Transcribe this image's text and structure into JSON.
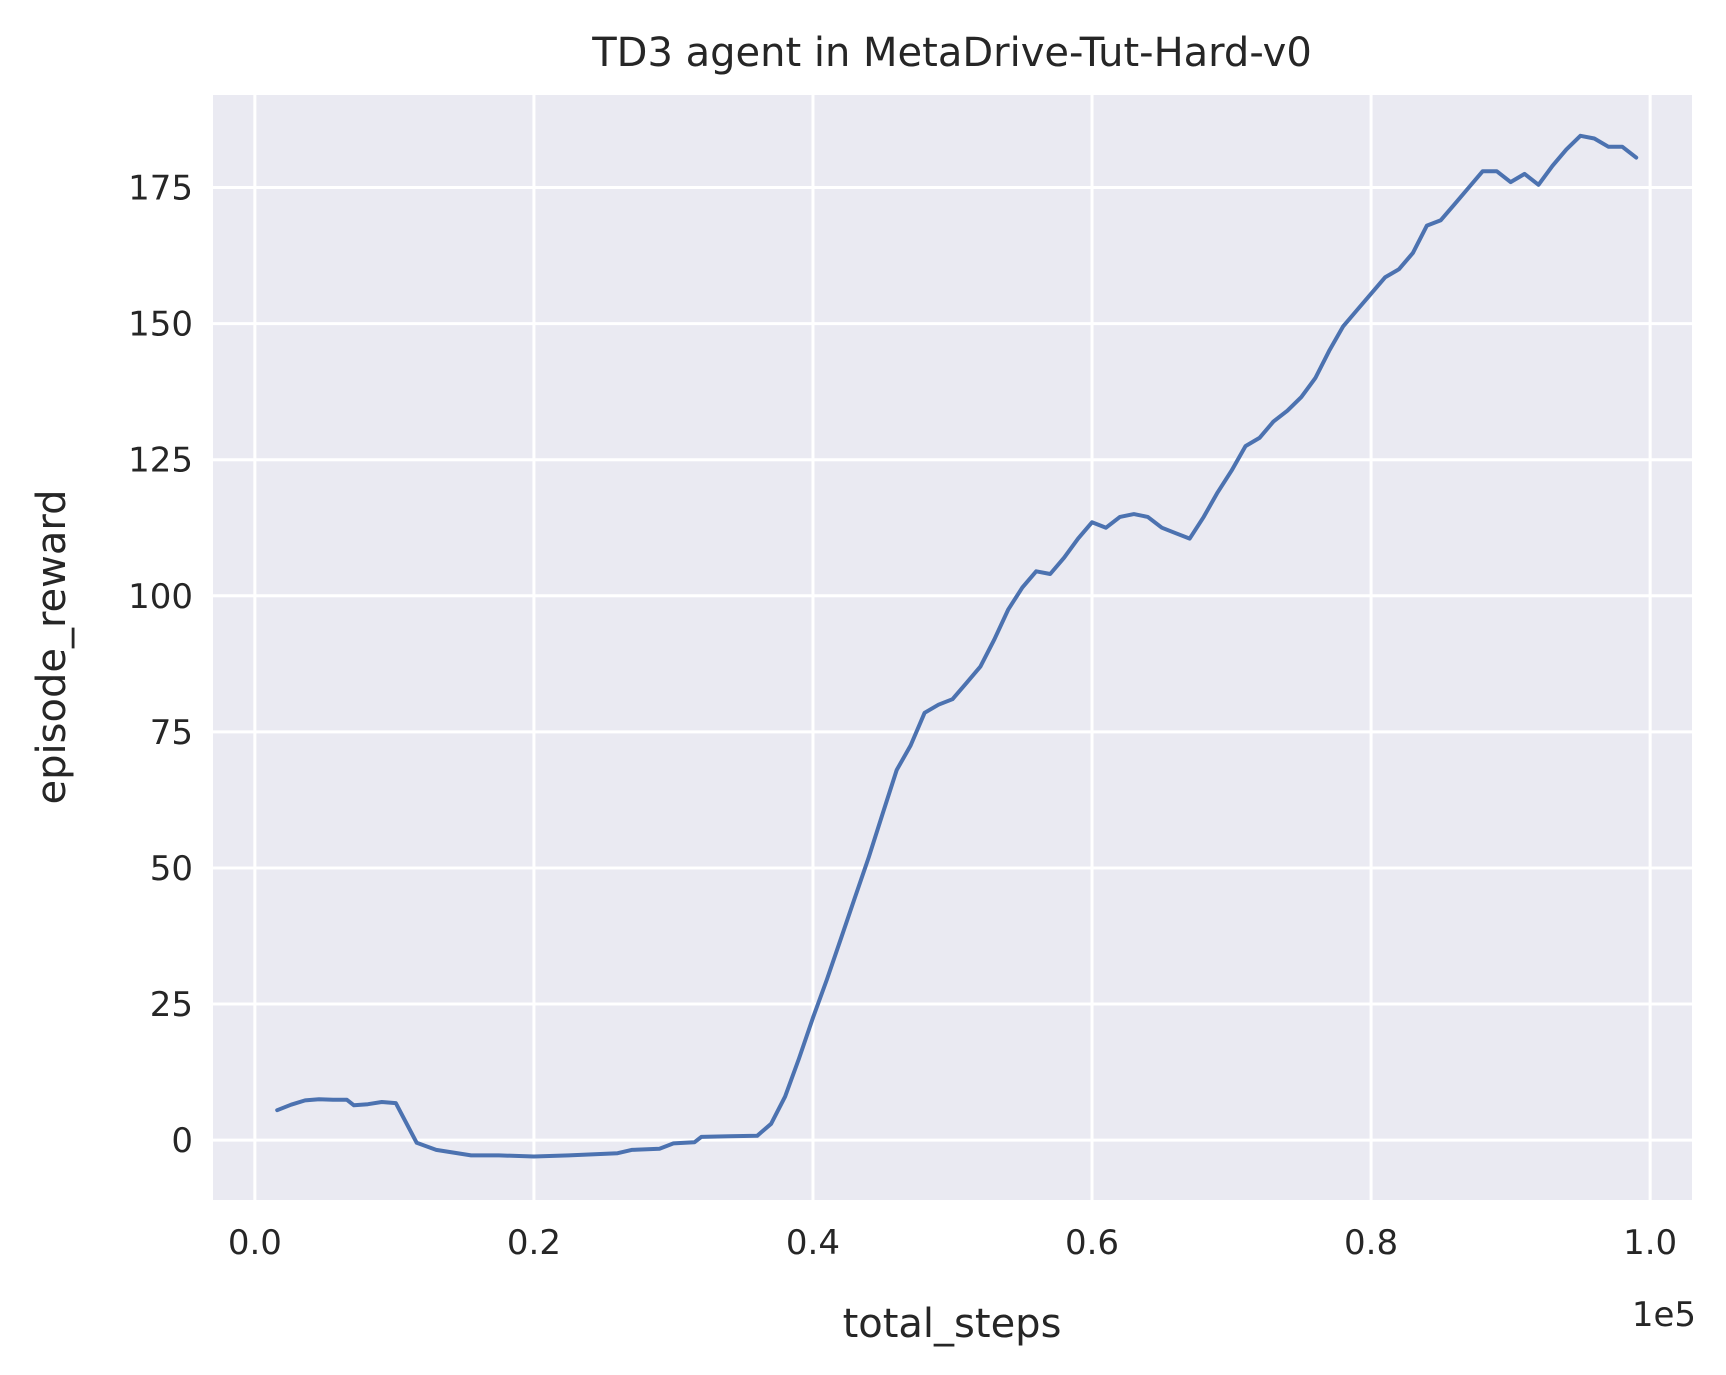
{
  "chart_data": {
    "type": "line",
    "title": "TD3 agent in MetaDrive-Tut-Hard-v0",
    "xlabel": "total_steps",
    "ylabel": "episode_reward",
    "x_offset_label": "1e5",
    "xlim": [
      -0.03,
      1.03
    ],
    "ylim": [
      -11,
      192
    ],
    "xticks": [
      0.0,
      0.2,
      0.4,
      0.6,
      0.8,
      1.0
    ],
    "xtick_labels": [
      "0.0",
      "0.2",
      "0.4",
      "0.6",
      "0.8",
      "1.0"
    ],
    "yticks": [
      0,
      25,
      50,
      75,
      100,
      125,
      150,
      175
    ],
    "ytick_labels": [
      "0",
      "25",
      "50",
      "75",
      "100",
      "125",
      "150",
      "175"
    ],
    "grid": true,
    "background": "#EAEAF2",
    "line_color": "#4C72B0",
    "series": [
      {
        "x": [
          0.016,
          0.026,
          0.036,
          0.046,
          0.056,
          0.066,
          0.071,
          0.081,
          0.091,
          0.101,
          0.116,
          0.13,
          0.155,
          0.175,
          0.2,
          0.225,
          0.26,
          0.27,
          0.29,
          0.3,
          0.315,
          0.32,
          0.34,
          0.36,
          0.37,
          0.38,
          0.39,
          0.4,
          0.41,
          0.42,
          0.43,
          0.44,
          0.45,
          0.46,
          0.47,
          0.48,
          0.49,
          0.5,
          0.51,
          0.52,
          0.53,
          0.54,
          0.55,
          0.56,
          0.57,
          0.58,
          0.59,
          0.6,
          0.61,
          0.62,
          0.63,
          0.64,
          0.65,
          0.66,
          0.67,
          0.68,
          0.69,
          0.7,
          0.71,
          0.72,
          0.73,
          0.74,
          0.75,
          0.76,
          0.77,
          0.78,
          0.79,
          0.8,
          0.81,
          0.82,
          0.83,
          0.84,
          0.85,
          0.86,
          0.87,
          0.88,
          0.89,
          0.9,
          0.91,
          0.92,
          0.93,
          0.94,
          0.95,
          0.96,
          0.97,
          0.98,
          0.99
        ],
        "y": [
          5.5,
          6.5,
          7.3,
          7.5,
          7.4,
          7.4,
          6.4,
          6.6,
          7.0,
          6.8,
          -0.5,
          -1.8,
          -2.8,
          -2.8,
          -3.0,
          -2.8,
          -2.4,
          -1.8,
          -1.6,
          -0.6,
          -0.4,
          0.6,
          0.7,
          0.8,
          3.0,
          8.0,
          15.0,
          22.5,
          29.5,
          37.0,
          44.5,
          52.0,
          60.0,
          68.0,
          72.5,
          78.5,
          80.0,
          81.0,
          84.0,
          87.0,
          92.0,
          97.5,
          101.5,
          104.5,
          104.0,
          107.0,
          110.5,
          113.5,
          112.5,
          114.5,
          115.0,
          114.5,
          112.5,
          111.5,
          110.5,
          114.5,
          119.0,
          123.0,
          127.5,
          129.0,
          132.0,
          134.0,
          136.5,
          140.0,
          145.0,
          149.5,
          152.5,
          155.5,
          158.5,
          160.0,
          163.0,
          168.0,
          169.0,
          172.0,
          175.0,
          178.0,
          178.0,
          176.0,
          177.5,
          175.5,
          179.0,
          182.0,
          184.5,
          184.0,
          182.5,
          182.5,
          180.5
        ]
      }
    ]
  }
}
